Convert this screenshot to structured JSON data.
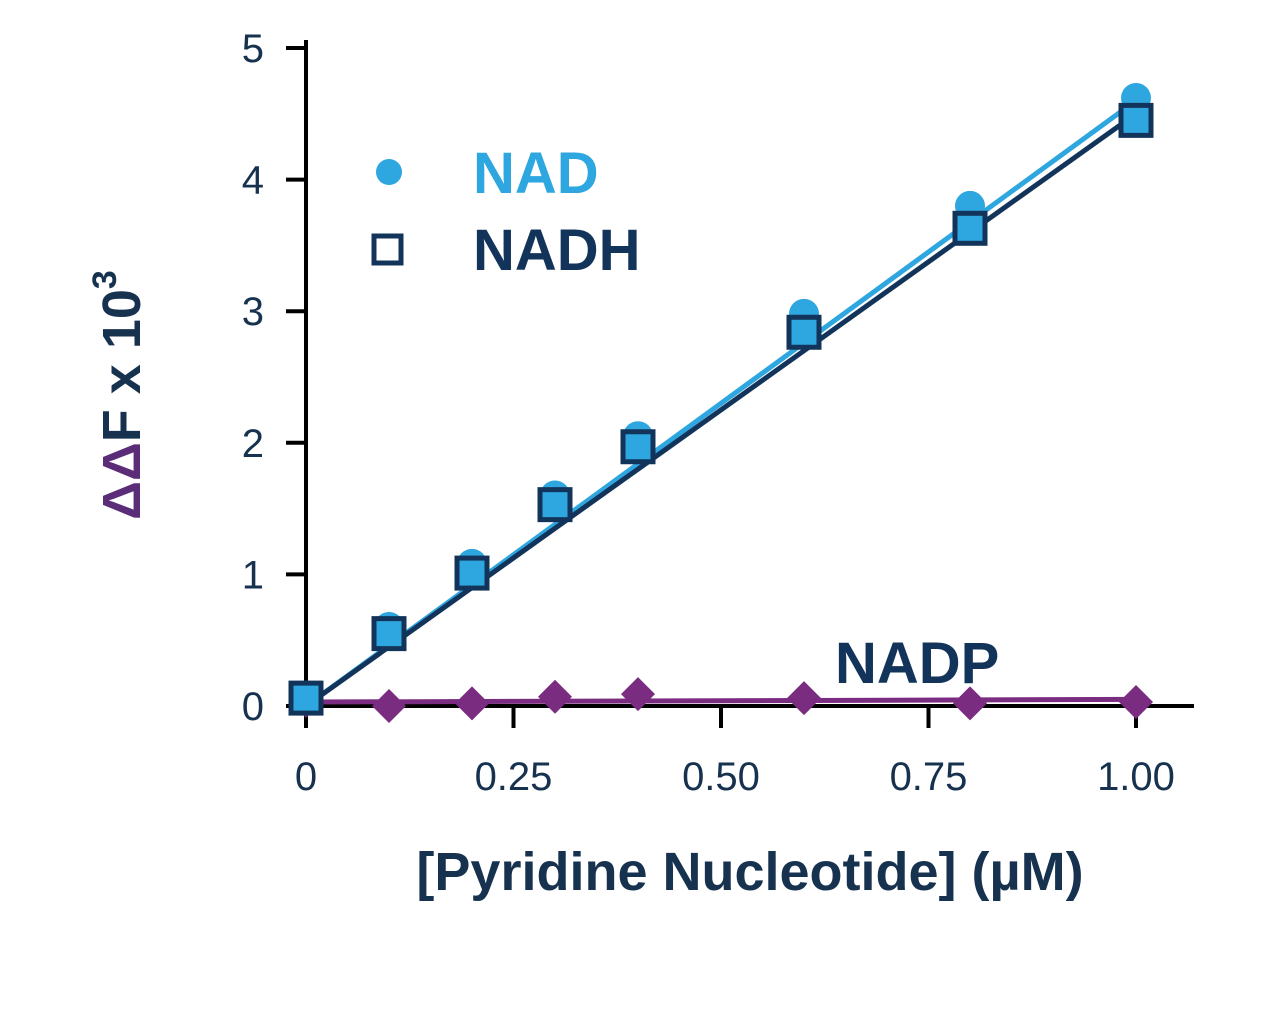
{
  "colors": {
    "nad": "#2ea6df",
    "nadh": "#13345a",
    "nadp": "#7a2c80",
    "axis": "#000000",
    "text": "#17324f",
    "ylabel_delta": "#5b2c77"
  },
  "chart_data": {
    "type": "scatter",
    "xlabel": "[Pyridine Nucleotide] (µM)",
    "ylabel": {
      "delta": "ΔΔ",
      "main": "F x 10",
      "exponent": "3"
    },
    "xlim": [
      0,
      1.05
    ],
    "ylim": [
      0,
      5
    ],
    "x_ticks": [
      0,
      0.25,
      0.5,
      0.75,
      1.0
    ],
    "x_tick_labels": [
      "0",
      "0.25",
      "0.50",
      "0.75",
      "1.00"
    ],
    "y_ticks": [
      0,
      1,
      2,
      3,
      4,
      5
    ],
    "y_tick_labels": [
      "0",
      "1",
      "2",
      "3",
      "4",
      "5"
    ],
    "legend_position": "upper-left",
    "series": [
      {
        "name": "NAD",
        "marker": "circle",
        "color_key": "nad",
        "x": [
          0,
          0.1,
          0.2,
          0.3,
          0.4,
          0.6,
          0.8,
          1.0
        ],
        "y": [
          0.08,
          0.6,
          1.08,
          1.6,
          2.05,
          2.98,
          3.8,
          4.62
        ],
        "fit": {
          "x": [
            0,
            1.0
          ],
          "y": [
            0.0,
            4.6
          ]
        }
      },
      {
        "name": "NADH",
        "marker": "open-square",
        "color_key": "nadh",
        "x": [
          0,
          0.1,
          0.2,
          0.3,
          0.4,
          0.6,
          0.8,
          1.0
        ],
        "y": [
          0.06,
          0.55,
          1.01,
          1.53,
          1.97,
          2.84,
          3.63,
          4.45
        ],
        "fit": {
          "x": [
            0,
            1.0
          ],
          "y": [
            0.0,
            4.5
          ]
        }
      },
      {
        "name": "NADP",
        "marker": "diamond",
        "color_key": "nadp",
        "x": [
          0,
          0.1,
          0.2,
          0.3,
          0.4,
          0.6,
          0.8,
          1.0
        ],
        "y": [
          0.04,
          0.0,
          0.02,
          0.07,
          0.09,
          0.06,
          0.02,
          0.03
        ],
        "fit": {
          "x": [
            0,
            1.0
          ],
          "y": [
            0.03,
            0.05
          ]
        }
      }
    ]
  }
}
